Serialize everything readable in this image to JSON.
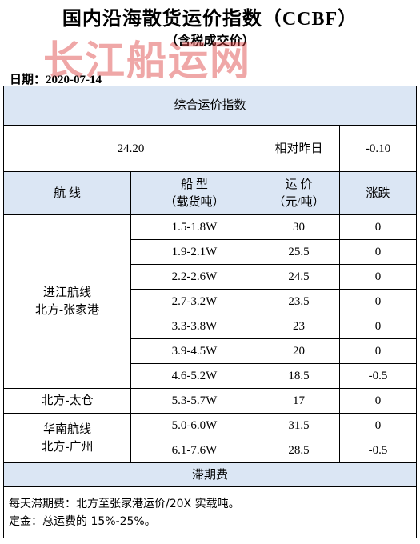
{
  "header": {
    "title": "国内沿海散货运价指数（CCBF）",
    "subtitle": "（含税成交价）",
    "watermark": "长江船运网",
    "date_label": "日期：2020-07-14"
  },
  "index": {
    "heading": "综合运价指数",
    "value": "24.20",
    "change_label": "相对昨日",
    "change_value": "-0.10"
  },
  "columns": {
    "route": "航  线",
    "ship_type_line1": "船  型",
    "ship_type_line2": "（载货吨）",
    "price_line1": "运  价",
    "price_line2": "（元/吨）",
    "change": "涨跌"
  },
  "groups": [
    {
      "route_line1": "进江航线",
      "route_line2": "北方-张家港",
      "rows": [
        {
          "type": "1.5-1.8W",
          "price": "30",
          "change": "0"
        },
        {
          "type": "1.9-2.1W",
          "price": "25.5",
          "change": "0"
        },
        {
          "type": "2.2-2.6W",
          "price": "24.5",
          "change": "0"
        },
        {
          "type": "2.7-3.2W",
          "price": "23.5",
          "change": "0"
        },
        {
          "type": "3.3-3.8W",
          "price": "23",
          "change": "0"
        },
        {
          "type": "3.9-4.5W",
          "price": "20",
          "change": "0"
        },
        {
          "type": "4.6-5.2W",
          "price": "18.5",
          "change": "-0.5"
        }
      ]
    },
    {
      "route_line1": "北方-太仓",
      "route_line2": "",
      "rows": [
        {
          "type": "5.3-5.7W",
          "price": "17",
          "change": "0"
        }
      ]
    },
    {
      "route_line1": "华南航线",
      "route_line2": "北方-广州",
      "rows": [
        {
          "type": "5.0-6.0W",
          "price": "31.5",
          "change": "0"
        },
        {
          "type": "6.1-7.6W",
          "price": "28.5",
          "change": "-0.5"
        }
      ]
    }
  ],
  "demurrage": {
    "heading": "滞期费",
    "note1": "每天滞期费：北方至张家港运价/20X 实载吨。",
    "note2": "定金：总运费的 15%-25%。"
  },
  "colors": {
    "header_fill": "#dbe6f4",
    "watermark": "#dc3c3c"
  }
}
